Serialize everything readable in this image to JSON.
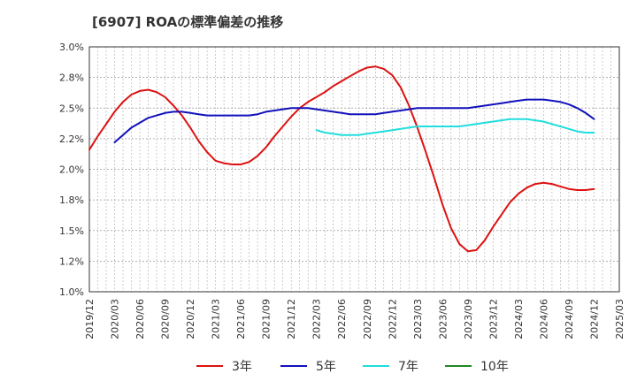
{
  "chart_data": {
    "type": "line",
    "title": "[6907]  ROAの標準偏差の推移",
    "xlabel": "",
    "ylabel": "",
    "ylim": [
      1.0,
      3.0
    ],
    "y_ticks": [
      1.0,
      1.25,
      1.5,
      1.75,
      2.0,
      2.25,
      2.5,
      2.75,
      3.0
    ],
    "y_tick_labels": [
      "1.0%",
      "1.2%",
      "1.5%",
      "1.8%",
      "2.0%",
      "2.2%",
      "2.5%",
      "2.8%",
      "3.0%"
    ],
    "x_ticks": [
      "2019/12",
      "2020/03",
      "2020/06",
      "2020/09",
      "2020/12",
      "2021/03",
      "2021/06",
      "2021/09",
      "2021/12",
      "2022/03",
      "2022/06",
      "2022/09",
      "2022/12",
      "2023/03",
      "2023/06",
      "2023/09",
      "2023/12",
      "2024/03",
      "2024/06",
      "2024/09",
      "2024/12",
      "2025/03"
    ],
    "grid": true,
    "legend": "bottom",
    "series": [
      {
        "name": "3年",
        "color": "#dd1111",
        "points": [
          [
            "2019/12",
            2.16
          ],
          [
            "2020/01",
            2.27
          ],
          [
            "2020/02",
            2.37
          ],
          [
            "2020/03",
            2.47
          ],
          [
            "2020/04",
            2.55
          ],
          [
            "2020/05",
            2.61
          ],
          [
            "2020/06",
            2.64
          ],
          [
            "2020/07",
            2.65
          ],
          [
            "2020/08",
            2.63
          ],
          [
            "2020/09",
            2.59
          ],
          [
            "2020/10",
            2.52
          ],
          [
            "2020/11",
            2.44
          ],
          [
            "2020/12",
            2.34
          ],
          [
            "2021/01",
            2.23
          ],
          [
            "2021/02",
            2.14
          ],
          [
            "2021/03",
            2.07
          ],
          [
            "2021/04",
            2.05
          ],
          [
            "2021/05",
            2.04
          ],
          [
            "2021/06",
            2.04
          ],
          [
            "2021/07",
            2.06
          ],
          [
            "2021/08",
            2.11
          ],
          [
            "2021/09",
            2.18
          ],
          [
            "2021/10",
            2.27
          ],
          [
            "2021/11",
            2.35
          ],
          [
            "2021/12",
            2.43
          ],
          [
            "2022/01",
            2.5
          ],
          [
            "2022/02",
            2.55
          ],
          [
            "2022/03",
            2.59
          ],
          [
            "2022/04",
            2.63
          ],
          [
            "2022/05",
            2.68
          ],
          [
            "2022/06",
            2.72
          ],
          [
            "2022/07",
            2.76
          ],
          [
            "2022/08",
            2.8
          ],
          [
            "2022/09",
            2.83
          ],
          [
            "2022/10",
            2.84
          ],
          [
            "2022/11",
            2.82
          ],
          [
            "2022/12",
            2.77
          ],
          [
            "2023/01",
            2.67
          ],
          [
            "2023/02",
            2.52
          ],
          [
            "2023/03",
            2.34
          ],
          [
            "2023/04",
            2.14
          ],
          [
            "2023/05",
            1.93
          ],
          [
            "2023/06",
            1.71
          ],
          [
            "2023/07",
            1.52
          ],
          [
            "2023/08",
            1.39
          ],
          [
            "2023/09",
            1.33
          ],
          [
            "2023/10",
            1.34
          ],
          [
            "2023/11",
            1.42
          ],
          [
            "2023/12",
            1.53
          ],
          [
            "2024/01",
            1.63
          ],
          [
            "2024/02",
            1.73
          ],
          [
            "2024/03",
            1.8
          ],
          [
            "2024/04",
            1.85
          ],
          [
            "2024/05",
            1.88
          ],
          [
            "2024/06",
            1.89
          ],
          [
            "2024/07",
            1.88
          ],
          [
            "2024/08",
            1.86
          ],
          [
            "2024/09",
            1.84
          ],
          [
            "2024/10",
            1.83
          ],
          [
            "2024/11",
            1.83
          ],
          [
            "2024/12",
            1.84
          ]
        ]
      },
      {
        "name": "5年",
        "color": "#1111bb",
        "points": [
          [
            "2020/03",
            2.22
          ],
          [
            "2020/04",
            2.28
          ],
          [
            "2020/05",
            2.34
          ],
          [
            "2020/06",
            2.38
          ],
          [
            "2020/07",
            2.42
          ],
          [
            "2020/08",
            2.44
          ],
          [
            "2020/09",
            2.46
          ],
          [
            "2020/10",
            2.47
          ],
          [
            "2020/11",
            2.47
          ],
          [
            "2020/12",
            2.46
          ],
          [
            "2021/01",
            2.45
          ],
          [
            "2021/02",
            2.44
          ],
          [
            "2021/03",
            2.44
          ],
          [
            "2021/04",
            2.44
          ],
          [
            "2021/05",
            2.44
          ],
          [
            "2021/06",
            2.44
          ],
          [
            "2021/07",
            2.44
          ],
          [
            "2021/08",
            2.45
          ],
          [
            "2021/09",
            2.47
          ],
          [
            "2021/10",
            2.48
          ],
          [
            "2021/11",
            2.49
          ],
          [
            "2021/12",
            2.5
          ],
          [
            "2022/01",
            2.5
          ],
          [
            "2022/02",
            2.5
          ],
          [
            "2022/03",
            2.49
          ],
          [
            "2022/04",
            2.48
          ],
          [
            "2022/05",
            2.47
          ],
          [
            "2022/06",
            2.46
          ],
          [
            "2022/07",
            2.45
          ],
          [
            "2022/08",
            2.45
          ],
          [
            "2022/09",
            2.45
          ],
          [
            "2022/10",
            2.45
          ],
          [
            "2022/11",
            2.46
          ],
          [
            "2022/12",
            2.47
          ],
          [
            "2023/01",
            2.48
          ],
          [
            "2023/02",
            2.49
          ],
          [
            "2023/03",
            2.5
          ],
          [
            "2023/04",
            2.5
          ],
          [
            "2023/05",
            2.5
          ],
          [
            "2023/06",
            2.5
          ],
          [
            "2023/07",
            2.5
          ],
          [
            "2023/08",
            2.5
          ],
          [
            "2023/09",
            2.5
          ],
          [
            "2023/10",
            2.51
          ],
          [
            "2023/11",
            2.52
          ],
          [
            "2023/12",
            2.53
          ],
          [
            "2024/01",
            2.54
          ],
          [
            "2024/02",
            2.55
          ],
          [
            "2024/03",
            2.56
          ],
          [
            "2024/04",
            2.57
          ],
          [
            "2024/05",
            2.57
          ],
          [
            "2024/06",
            2.57
          ],
          [
            "2024/07",
            2.56
          ],
          [
            "2024/08",
            2.55
          ],
          [
            "2024/09",
            2.53
          ],
          [
            "2024/10",
            2.5
          ],
          [
            "2024/11",
            2.46
          ],
          [
            "2024/12",
            2.41
          ]
        ]
      },
      {
        "name": "7年",
        "color": "#22dddd",
        "points": [
          [
            "2022/03",
            2.32
          ],
          [
            "2022/04",
            2.3
          ],
          [
            "2022/05",
            2.29
          ],
          [
            "2022/06",
            2.28
          ],
          [
            "2022/07",
            2.28
          ],
          [
            "2022/08",
            2.28
          ],
          [
            "2022/09",
            2.29
          ],
          [
            "2022/10",
            2.3
          ],
          [
            "2022/11",
            2.31
          ],
          [
            "2022/12",
            2.32
          ],
          [
            "2023/01",
            2.33
          ],
          [
            "2023/02",
            2.34
          ],
          [
            "2023/03",
            2.35
          ],
          [
            "2023/04",
            2.35
          ],
          [
            "2023/05",
            2.35
          ],
          [
            "2023/06",
            2.35
          ],
          [
            "2023/07",
            2.35
          ],
          [
            "2023/08",
            2.35
          ],
          [
            "2023/09",
            2.36
          ],
          [
            "2023/10",
            2.37
          ],
          [
            "2023/11",
            2.38
          ],
          [
            "2023/12",
            2.39
          ],
          [
            "2024/01",
            2.4
          ],
          [
            "2024/02",
            2.41
          ],
          [
            "2024/03",
            2.41
          ],
          [
            "2024/04",
            2.41
          ],
          [
            "2024/05",
            2.4
          ],
          [
            "2024/06",
            2.39
          ],
          [
            "2024/07",
            2.37
          ],
          [
            "2024/08",
            2.35
          ],
          [
            "2024/09",
            2.33
          ],
          [
            "2024/10",
            2.31
          ],
          [
            "2024/11",
            2.3
          ],
          [
            "2024/12",
            2.3
          ]
        ]
      },
      {
        "name": "10年",
        "color": "#228822",
        "points": []
      }
    ]
  }
}
